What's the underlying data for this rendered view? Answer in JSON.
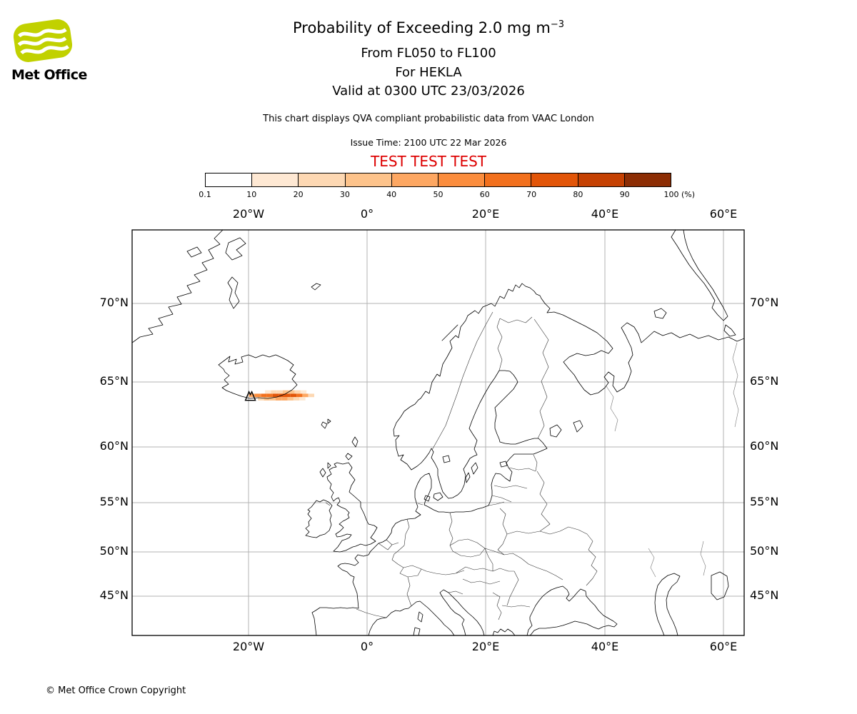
{
  "header": {
    "logo_text": "Met Office",
    "logo_green": "#c1d100",
    "title": "Probability of Exceeding 2.0 mg m",
    "title_sup": "−3",
    "subtitle_line1": "From FL050 to FL100",
    "subtitle_line2": "For HEKLA",
    "subtitle_line3": "Valid at 0300 UTC 23/03/2026",
    "description": "This chart displays QVA compliant probabilistic data from VAAC London",
    "issue_time": "Issue Time: 2100 UTC 22 Mar 2026",
    "test_banner": "TEST TEST TEST",
    "test_banner_color": "#dd0000"
  },
  "colorbar": {
    "unit": "(%)",
    "tick_labels": [
      "0.1",
      "10",
      "20",
      "30",
      "40",
      "50",
      "60",
      "70",
      "80",
      "90",
      "100"
    ],
    "colors": [
      "#ffffff",
      "#fee8d3",
      "#fdd8b3",
      "#fdc38b",
      "#fda762",
      "#fb8d3d",
      "#f2701d",
      "#e25508",
      "#c54102",
      "#8c2d04"
    ]
  },
  "map": {
    "lon_ticks": [
      "20°W",
      "0°",
      "20°E",
      "40°E",
      "60°E"
    ],
    "lat_ticks": [
      "70°N",
      "65°N",
      "60°N",
      "55°N",
      "50°N",
      "45°N"
    ]
  },
  "chart_data": {
    "type": "heatmap",
    "projection": "mercator",
    "extent_deg": {
      "lon_min": -39.6,
      "lon_max": 63.5,
      "lat_min": 40.2,
      "lat_max": 73.8
    },
    "lon_gridlines_deg": [
      -20,
      0,
      20,
      40,
      60
    ],
    "lat_gridlines_deg": [
      70,
      65,
      60,
      55,
      50,
      45
    ],
    "units": "%",
    "probability_levels_percent": [
      0.1,
      10,
      20,
      30,
      40,
      50,
      60,
      70,
      80,
      90,
      100
    ],
    "plume": {
      "volcano": {
        "name": "HEKLA",
        "lon": -19.66,
        "lat": 63.98
      },
      "cell_size": {
        "dlon": 1.0,
        "dlat": 0.25
      },
      "cells": [
        {
          "lon": -16.7,
          "lat": 64.28,
          "p": 15
        },
        {
          "lon": -15.7,
          "lat": 64.28,
          "p": 20
        },
        {
          "lon": -14.7,
          "lat": 64.28,
          "p": 25
        },
        {
          "lon": -13.7,
          "lat": 64.28,
          "p": 30
        },
        {
          "lon": -12.7,
          "lat": 64.28,
          "p": 30
        },
        {
          "lon": -11.7,
          "lat": 64.28,
          "p": 25
        },
        {
          "lon": -10.7,
          "lat": 64.28,
          "p": 15
        },
        {
          "lon": -19.4,
          "lat": 64.03,
          "p": 45
        },
        {
          "lon": -18.4,
          "lat": 64.03,
          "p": 55
        },
        {
          "lon": -17.4,
          "lat": 64.03,
          "p": 60
        },
        {
          "lon": -16.4,
          "lat": 64.03,
          "p": 65
        },
        {
          "lon": -15.4,
          "lat": 64.03,
          "p": 70
        },
        {
          "lon": -14.4,
          "lat": 64.03,
          "p": 75
        },
        {
          "lon": -13.4,
          "lat": 64.03,
          "p": 75
        },
        {
          "lon": -12.4,
          "lat": 64.03,
          "p": 70
        },
        {
          "lon": -11.4,
          "lat": 64.03,
          "p": 60
        },
        {
          "lon": -10.4,
          "lat": 64.03,
          "p": 40
        },
        {
          "lon": -9.4,
          "lat": 64.03,
          "p": 20
        },
        {
          "lon": -17.9,
          "lat": 63.78,
          "p": 20
        },
        {
          "lon": -16.9,
          "lat": 63.78,
          "p": 30
        },
        {
          "lon": -15.9,
          "lat": 63.78,
          "p": 35
        },
        {
          "lon": -14.9,
          "lat": 63.78,
          "p": 40
        },
        {
          "lon": -13.9,
          "lat": 63.78,
          "p": 40
        },
        {
          "lon": -12.9,
          "lat": 63.78,
          "p": 35
        },
        {
          "lon": -11.9,
          "lat": 63.78,
          "p": 25
        },
        {
          "lon": -10.9,
          "lat": 63.78,
          "p": 15
        }
      ]
    }
  },
  "footer": {
    "copyright": "© Met Office Crown Copyright"
  }
}
